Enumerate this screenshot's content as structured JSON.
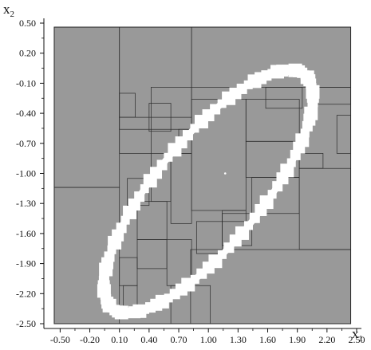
{
  "chart_data": {
    "type": "scatter",
    "title": "",
    "xlabel": "x",
    "xlabel_sub": "1",
    "ylabel": "x",
    "ylabel_sub": "2",
    "xlim": [
      -0.6,
      2.5
    ],
    "ylim": [
      -2.5,
      0.5
    ],
    "x_ticks": [
      -0.5,
      -0.2,
      0.1,
      0.4,
      0.7,
      1.0,
      1.3,
      1.6,
      1.9,
      2.2,
      2.5
    ],
    "x_tick_labels": [
      "-0.50",
      "-0.20",
      "0.10",
      "0.40",
      "0.70",
      "1.00",
      "1.30",
      "1.60",
      "1.90",
      "2.20",
      "2.50"
    ],
    "y_ticks": [
      0.5,
      0.2,
      -0.1,
      -0.4,
      -0.7,
      -1.0,
      -1.3,
      -1.6,
      -1.9,
      -2.2,
      -2.5
    ],
    "y_tick_labels": [
      "0.50",
      "0.20",
      "-0.10",
      "-0.40",
      "-0.70",
      "-1.00",
      "-1.30",
      "-1.60",
      "-1.90",
      "-2.20",
      "-2.50"
    ],
    "grid": false,
    "background_color": "#999999",
    "boundary_color": "#ffffff",
    "box_edge_color": "#2a2a2a",
    "ellipse": {
      "center": [
        1.0,
        -1.18
      ],
      "semi_axis_major": 1.52,
      "semi_axis_minor": 0.53,
      "rotation_deg": 50
    },
    "dot_point": [
      1.17,
      -1.0
    ],
    "subpaving_boxes": [
      {
        "x": [
          -0.56,
          2.44
        ],
        "y": [
          -2.5,
          0.46
        ]
      },
      {
        "x": [
          -0.56,
          0.1
        ],
        "y": [
          -1.14,
          0.46
        ]
      },
      {
        "x": [
          0.1,
          0.83
        ],
        "y": [
          -0.56,
          0.46
        ]
      },
      {
        "x": [
          0.83,
          2.44
        ],
        "y": [
          -0.14,
          0.46
        ]
      },
      {
        "x": [
          -0.56,
          0.1
        ],
        "y": [
          -2.5,
          -1.14
        ]
      },
      {
        "x": [
          0.1,
          0.42
        ],
        "y": [
          -0.8,
          -0.44
        ]
      },
      {
        "x": [
          0.42,
          0.83
        ],
        "y": [
          -0.44,
          -0.14
        ]
      },
      {
        "x": [
          0.42,
          0.62
        ],
        "y": [
          -1.28,
          -0.8
        ]
      },
      {
        "x": [
          0.62,
          0.83
        ],
        "y": [
          -1.5,
          -0.8
        ]
      },
      {
        "x": [
          0.83,
          1.38
        ],
        "y": [
          -1.37,
          -0.26
        ]
      },
      {
        "x": [
          0.88,
          1.14
        ],
        "y": [
          -1.8,
          -1.48
        ]
      },
      {
        "x": [
          0.28,
          0.58
        ],
        "y": [
          -1.95,
          -1.66
        ]
      },
      {
        "x": [
          0.58,
          0.83
        ],
        "y": [
          -2.12,
          -1.66
        ]
      },
      {
        "x": [
          1.38,
          1.92
        ],
        "y": [
          -0.68,
          -0.26
        ]
      },
      {
        "x": [
          1.58,
          1.95
        ],
        "y": [
          -0.35,
          -0.14
        ]
      },
      {
        "x": [
          2.02,
          2.44
        ],
        "y": [
          -0.31,
          -0.14
        ]
      },
      {
        "x": [
          1.92,
          2.44
        ],
        "y": [
          -1.76,
          -0.95
        ]
      },
      {
        "x": [
          0.82,
          2.44
        ],
        "y": [
          -2.5,
          -1.76
        ]
      },
      {
        "x": [
          0.62,
          1.02
        ],
        "y": [
          -2.5,
          -2.12
        ]
      },
      {
        "x": [
          0.1,
          0.28
        ],
        "y": [
          -2.12,
          -1.84
        ]
      },
      {
        "x": [
          1.44,
          1.92
        ],
        "y": [
          -1.4,
          -1.04
        ]
      },
      {
        "x": [
          1.14,
          1.44
        ],
        "y": [
          -1.72,
          -1.4
        ]
      },
      {
        "x": [
          0.18,
          0.4
        ],
        "y": [
          -1.32,
          -1.05
        ]
      },
      {
        "x": [
          0.4,
          0.62
        ],
        "y": [
          -0.58,
          -0.3
        ]
      },
      {
        "x": [
          1.38,
          1.92
        ],
        "y": [
          -1.04,
          -0.68
        ]
      },
      {
        "x": [
          0.1,
          0.26
        ],
        "y": [
          -0.44,
          -0.2
        ]
      },
      {
        "x": [
          0.7,
          0.83
        ],
        "y": [
          -0.8,
          -0.56
        ]
      },
      {
        "x": [
          0.28,
          0.58
        ],
        "y": [
          -1.66,
          -1.28
        ]
      },
      {
        "x": [
          0.14,
          0.28
        ],
        "y": [
          -2.42,
          -2.12
        ]
      },
      {
        "x": [
          1.14,
          1.38
        ],
        "y": [
          -1.48,
          -1.37
        ]
      },
      {
        "x": [
          1.92,
          2.16
        ],
        "y": [
          -0.95,
          -0.8
        ]
      },
      {
        "x": [
          2.3,
          2.44
        ],
        "y": [
          -0.8,
          -0.42
        ]
      }
    ]
  }
}
